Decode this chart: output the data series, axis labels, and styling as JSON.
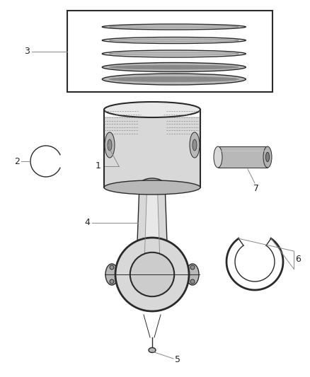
{
  "bg_color": "#ffffff",
  "line_color": "#2a2a2a",
  "gray_light": "#d8d8d8",
  "gray_mid": "#b8b8b8",
  "gray_dark": "#888888",
  "label_fontsize": 9,
  "label_color": "#222222"
}
